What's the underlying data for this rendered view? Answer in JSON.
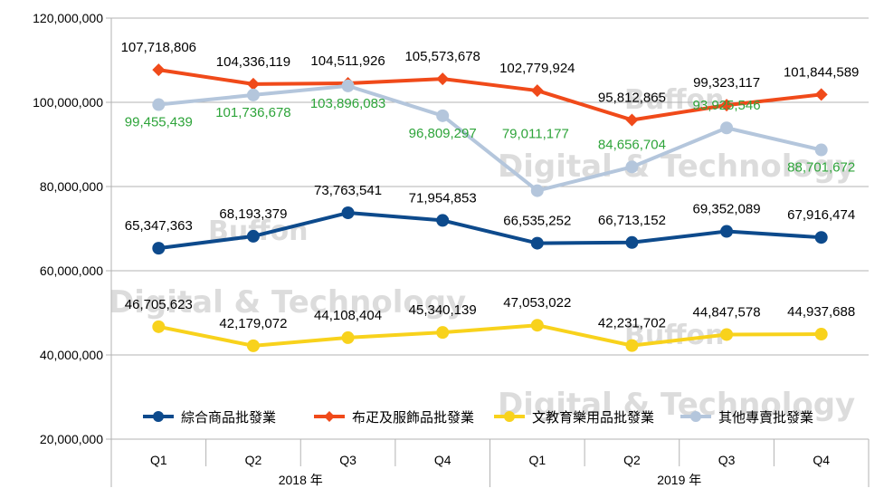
{
  "chart_data": {
    "type": "line",
    "title": "",
    "xlabel": "",
    "ylabel": "",
    "ylim": [
      20000000,
      120000000
    ],
    "yticks": [
      20000000,
      40000000,
      60000000,
      80000000,
      100000000,
      120000000
    ],
    "ytick_labels": [
      "20,000,000",
      "40,000,000",
      "60,000,000",
      "80,000,000",
      "100,000,000",
      "120,000,000"
    ],
    "categories": [
      "Q1",
      "Q2",
      "Q3",
      "Q4",
      "Q1",
      "Q2",
      "Q3",
      "Q4"
    ],
    "year_groups": [
      {
        "label": "2018 年",
        "span": 4
      },
      {
        "label": "2019 年",
        "span": 4
      }
    ],
    "grid": "y-major",
    "legend_position": "bottom-inside",
    "series": [
      {
        "name": "綜合商品批發業",
        "color": "#0d4a8c",
        "label_color": "#000000",
        "values": [
          65347363,
          68193379,
          73763541,
          71954853,
          66535252,
          66713152,
          69352089,
          67916474
        ],
        "labels": [
          "65,347,363",
          "68,193,379",
          "73,763,541",
          "71,954,853",
          "66,535,252",
          "66,713,152",
          "69,352,089",
          "67,916,474"
        ]
      },
      {
        "name": "布疋及服飾品批發業",
        "color": "#f04a1a",
        "label_color": "#000000",
        "values": [
          107718806,
          104336119,
          104511926,
          105573678,
          102779924,
          95812865,
          99323117,
          101844589
        ],
        "labels": [
          "107,718,806",
          "104,336,119",
          "104,511,926",
          "105,573,678",
          "102,779,924",
          "95,812,865",
          "99,323,117",
          "101,844,589"
        ]
      },
      {
        "name": "文教育樂用品批發業",
        "color": "#f8d21c",
        "label_color": "#000000",
        "values": [
          46705623,
          42179072,
          44108404,
          45340139,
          47053022,
          42231702,
          44847578,
          44937688
        ],
        "labels": [
          "46,705,623",
          "42,179,072",
          "44,108,404",
          "45,340,139",
          "47,053,022",
          "42,231,702",
          "44,847,578",
          "44,937,688"
        ]
      },
      {
        "name": "其他專賣批發業",
        "color": "#b4c6dc",
        "label_color": "#2ea43a",
        "values": [
          99455439,
          101736678,
          103896083,
          96809297,
          79011177,
          84656704,
          93925546,
          88701672
        ],
        "labels": [
          "99,455,439",
          "101,736,678",
          "103,896,083",
          "96,809,297",
          "79,011,177",
          "84,656,704",
          "93,925,546",
          "88,701,672"
        ]
      }
    ]
  },
  "watermarks": [
    "Buffon",
    "Digital & Technology"
  ]
}
